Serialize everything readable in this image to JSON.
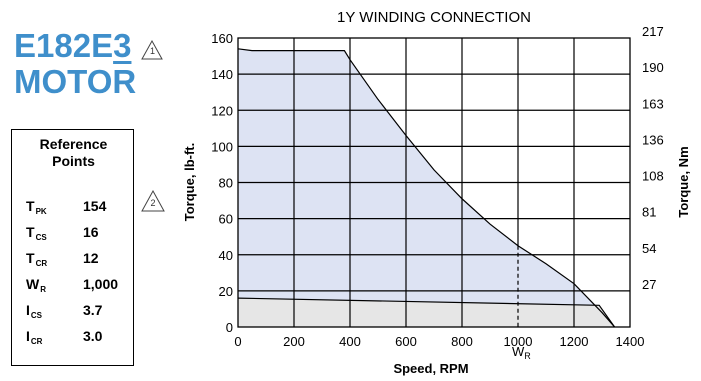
{
  "motor": {
    "code_prefix": "E182E",
    "code_suffix": "3",
    "name": "MOTOR",
    "note_marker": "1"
  },
  "reference_points": {
    "title_line1": "Reference",
    "title_line2": "Points",
    "note_marker": "2",
    "rows": [
      {
        "symbol": "T",
        "sub": "PK",
        "value": "154"
      },
      {
        "symbol": "T",
        "sub": "CS",
        "value": "16"
      },
      {
        "symbol": "T",
        "sub": "CR",
        "value": "12"
      },
      {
        "symbol": "W",
        "sub": "R",
        "value": "1,000"
      },
      {
        "symbol": "I",
        "sub": "CS",
        "value": "3.7"
      },
      {
        "symbol": "I",
        "sub": "CR",
        "value": "3.0"
      }
    ]
  },
  "chart_data": {
    "type": "area",
    "title": "1Y WINDING CONNECTION",
    "xlabel": "Speed, RPM",
    "ylabel": "Torque, lb-ft.",
    "ylabel_right": "Torque, Nm",
    "xlim": [
      0,
      1400
    ],
    "ylim": [
      0,
      160
    ],
    "x_ticks": [
      0,
      200,
      400,
      600,
      800,
      1000,
      1200,
      1400
    ],
    "y_ticks": [
      0,
      20,
      40,
      60,
      80,
      100,
      120,
      140,
      160
    ],
    "y_right_ticks": [
      "27",
      "54",
      "81",
      "108",
      "136",
      "163",
      "190",
      "217"
    ],
    "grid": true,
    "marker": {
      "x": 1000,
      "label": "W",
      "sub": "R"
    },
    "series": [
      {
        "role": "peak",
        "x": [
          0,
          50,
          380,
          400,
          500,
          600,
          700,
          800,
          900,
          1000,
          1100,
          1200,
          1300,
          1345
        ],
        "y": [
          154,
          153,
          153,
          148,
          126,
          106,
          87,
          71,
          57,
          45,
          35,
          24,
          8,
          0
        ]
      },
      {
        "role": "continuous",
        "x": [
          0,
          1290,
          1345
        ],
        "y": [
          16,
          12,
          0
        ]
      }
    ],
    "colors": {
      "peak_fill": "#dde3f3",
      "continuous_fill": "#e6e6e6",
      "grid": "#000000"
    }
  }
}
